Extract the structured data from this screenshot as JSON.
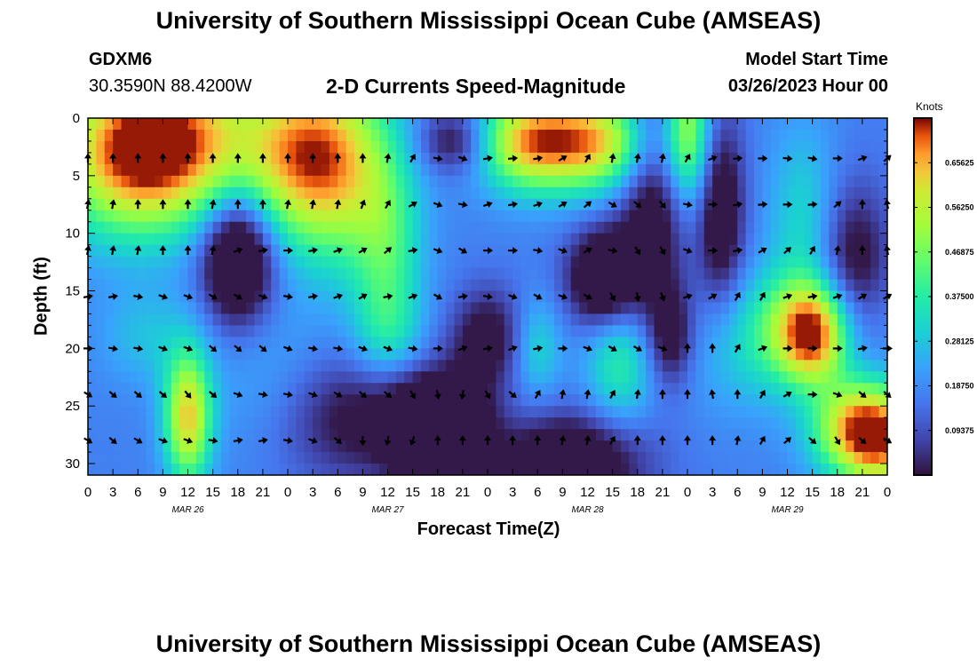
{
  "page": {
    "title": "University of Southern Mississippi Ocean Cube (AMSEAS)",
    "station": "GDXM6",
    "location": "30.3590N  88.4200W",
    "subtitle": "2-D Currents Speed-Magnitude",
    "model_start_label": "Model Start Time",
    "model_start_value": "03/26/2023 Hour 00",
    "bottom_title": "University of Southern Mississippi Ocean Cube (AMSEAS)"
  },
  "chart_data": {
    "type": "heatmap",
    "title": "2-D Currents Speed-Magnitude",
    "xlabel": "Forecast Time(Z)",
    "ylabel": "Depth (ft)",
    "colorbar_label": "Knots",
    "x_tick_labels": [
      "0",
      "3",
      "6",
      "9",
      "12",
      "15",
      "18",
      "21",
      "0",
      "3",
      "6",
      "9",
      "12",
      "15",
      "18",
      "21",
      "0",
      "3",
      "6",
      "9",
      "12",
      "15",
      "18",
      "21",
      "0",
      "3",
      "6",
      "9",
      "12",
      "15",
      "18",
      "21",
      "0"
    ],
    "x_range_hours": [
      0,
      96
    ],
    "month_labels": [
      {
        "label": "MAR 26",
        "hour": 12
      },
      {
        "label": "MAR 27",
        "hour": 36
      },
      {
        "label": "MAR 28",
        "hour": 60
      },
      {
        "label": "MAR 29",
        "hour": 84
      }
    ],
    "y_range_ft": [
      0,
      31
    ],
    "y_ticks": [
      0,
      5,
      10,
      15,
      20,
      25,
      30
    ],
    "colorbar_ticks": [
      "0.65625",
      "0.56250",
      "0.46875",
      "0.37500",
      "0.28125",
      "0.18750",
      "0.09375"
    ],
    "colorbar_values": [
      0.65625,
      0.5625,
      0.46875,
      0.375,
      0.28125,
      0.1875,
      0.09375
    ],
    "colorbar_range": [
      0,
      0.75
    ],
    "arrow_depths_ft": [
      3.5,
      7.5,
      11.5,
      15.5,
      20,
      24,
      28
    ],
    "arrow_hours": [
      0,
      3,
      6,
      9,
      12,
      15,
      18,
      21,
      24,
      27,
      30,
      33,
      36,
      39,
      42,
      45,
      48,
      51,
      54,
      57,
      60,
      63,
      66,
      69,
      72,
      75,
      78,
      81,
      84,
      87,
      90,
      93,
      96
    ],
    "blobs": [
      {
        "hour": 4,
        "depth": 3,
        "sh": 6,
        "sd": 5,
        "v": 0.45
      },
      {
        "hour": 12,
        "depth": 2,
        "sh": 6,
        "sd": 5,
        "v": 0.4
      },
      {
        "hour": 24,
        "depth": 3,
        "sh": 5,
        "sd": 5,
        "v": 0.3
      },
      {
        "hour": 30,
        "depth": 4,
        "sh": 5,
        "sd": 6,
        "v": 0.38
      },
      {
        "hour": 36,
        "depth": 12,
        "sh": 3,
        "sd": 6,
        "v": 0.2
      },
      {
        "hour": 18,
        "depth": 12,
        "sh": 3,
        "sd": 4,
        "v": -0.4
      },
      {
        "hour": 44,
        "depth": 2,
        "sh": 3,
        "sd": 2,
        "v": -0.2
      },
      {
        "hour": 60,
        "depth": 2,
        "sh": 6,
        "sd": 3,
        "v": 0.5
      },
      {
        "hour": 52,
        "depth": 2,
        "sh": 4,
        "sd": 3,
        "v": 0.3
      },
      {
        "hour": 72,
        "depth": 1,
        "sh": 2,
        "sd": 5,
        "v": 0.35
      },
      {
        "hour": 68,
        "depth": 6,
        "sh": 3,
        "sd": 8,
        "v": -0.25
      },
      {
        "hour": 62,
        "depth": 14,
        "sh": 3,
        "sd": 3,
        "v": -0.35
      },
      {
        "hour": 76,
        "depth": 8,
        "sh": 2,
        "sd": 6,
        "v": -0.25
      },
      {
        "hour": 92,
        "depth": 13,
        "sh": 3,
        "sd": 5,
        "v": -0.22
      },
      {
        "hour": 86,
        "depth": 9,
        "sh": 3,
        "sd": 6,
        "v": 0.15
      },
      {
        "hour": 12,
        "depth": 26,
        "sh": 2,
        "sd": 4,
        "v": 0.45
      },
      {
        "hour": 7,
        "depth": 19,
        "sh": 4,
        "sd": 3,
        "v": 0.1
      },
      {
        "hour": 22,
        "depth": 23,
        "sh": 6,
        "sd": 5,
        "v": 0.08
      },
      {
        "hour": 32,
        "depth": 26,
        "sh": 7,
        "sd": 4,
        "v": -0.2
      },
      {
        "hour": 36,
        "depth": 19,
        "sh": 3,
        "sd": 3,
        "v": 0.12
      },
      {
        "hour": 45,
        "depth": 28,
        "sh": 3,
        "sd": 4,
        "v": -0.25
      },
      {
        "hour": 40,
        "depth": 27,
        "sh": 3,
        "sd": 3,
        "v": -0.3
      },
      {
        "hour": 48,
        "depth": 19,
        "sh": 3,
        "sd": 3,
        "v": -0.2
      },
      {
        "hour": 54,
        "depth": 20,
        "sh": 2,
        "sd": 3,
        "v": 0.15
      },
      {
        "hour": 58,
        "depth": 30,
        "sh": 6,
        "sd": 3,
        "v": -0.3
      },
      {
        "hour": 64,
        "depth": 21,
        "sh": 3,
        "sd": 4,
        "v": 0.22
      },
      {
        "hour": 70,
        "depth": 19,
        "sh": 2,
        "sd": 3,
        "v": -0.2
      },
      {
        "hour": 77,
        "depth": 20,
        "sh": 4,
        "sd": 4,
        "v": 0.1
      },
      {
        "hour": 87,
        "depth": 19,
        "sh": 3,
        "sd": 3,
        "v": 0.5
      },
      {
        "hour": 82,
        "depth": 19,
        "sh": 3,
        "sd": 4,
        "v": 0.1
      },
      {
        "hour": 88,
        "depth": 17,
        "sh": 6,
        "sd": 3,
        "v": 0.1
      },
      {
        "hour": 93,
        "depth": 27,
        "sh": 4,
        "sd": 3,
        "v": 0.55
      },
      {
        "hour": 96,
        "depth": 29,
        "sh": 3,
        "sd": 3,
        "v": 0.2
      },
      {
        "hour": 83,
        "depth": 27,
        "sh": 6,
        "sd": 4,
        "v": 0.0
      }
    ],
    "arrow_angles_deg": [
      [
        -90,
        -90,
        -90,
        -90,
        -90,
        -90,
        -90,
        -90,
        -90,
        -90,
        -90,
        -90,
        -80,
        -60,
        10,
        20,
        -10,
        -5,
        -10,
        -30,
        -60,
        -80,
        -80,
        -80,
        -60,
        -20,
        -5,
        0,
        5,
        10,
        0,
        -20,
        -40
      ],
      [
        -80,
        -80,
        -90,
        -90,
        -90,
        -80,
        -90,
        -90,
        -80,
        -80,
        -80,
        -70,
        -60,
        -30,
        20,
        10,
        -20,
        -10,
        -20,
        -30,
        -40,
        30,
        40,
        50,
        10,
        0,
        -10,
        -5,
        0,
        -5,
        -40,
        -90,
        -100
      ],
      [
        -80,
        -80,
        -80,
        -90,
        -90,
        -80,
        -20,
        -10,
        0,
        -10,
        -20,
        -30,
        -40,
        -10,
        20,
        30,
        0,
        0,
        10,
        20,
        -30,
        10,
        60,
        60,
        20,
        0,
        -10,
        -30,
        -40,
        -60,
        -80,
        -90,
        -100
      ],
      [
        -10,
        -10,
        10,
        20,
        20,
        30,
        30,
        20,
        10,
        -10,
        -20,
        -30,
        -10,
        -20,
        30,
        -10,
        10,
        20,
        30,
        20,
        30,
        60,
        80,
        70,
        -20,
        -30,
        -60,
        -60,
        -20,
        -10,
        -20,
        -30,
        -30
      ],
      [
        0,
        10,
        10,
        20,
        20,
        40,
        40,
        40,
        20,
        10,
        10,
        20,
        20,
        10,
        0,
        -20,
        -10,
        -20,
        -10,
        0,
        20,
        30,
        30,
        20,
        -90,
        -90,
        -60,
        -20,
        0,
        0,
        0,
        -10,
        0
      ],
      [
        30,
        40,
        40,
        40,
        50,
        40,
        20,
        10,
        10,
        20,
        30,
        40,
        40,
        60,
        80,
        100,
        60,
        40,
        -60,
        -80,
        -80,
        -60,
        -80,
        -90,
        -90,
        -100,
        -90,
        -60,
        -30,
        0,
        20,
        40,
        40
      ],
      [
        30,
        40,
        30,
        20,
        20,
        10,
        -10,
        -10,
        10,
        20,
        40,
        90,
        100,
        110,
        -90,
        -90,
        -90,
        -90,
        -90,
        -80,
        -80,
        -60,
        -90,
        -90,
        -90,
        -90,
        -80,
        -60,
        -40,
        40,
        60,
        40,
        30
      ]
    ]
  }
}
